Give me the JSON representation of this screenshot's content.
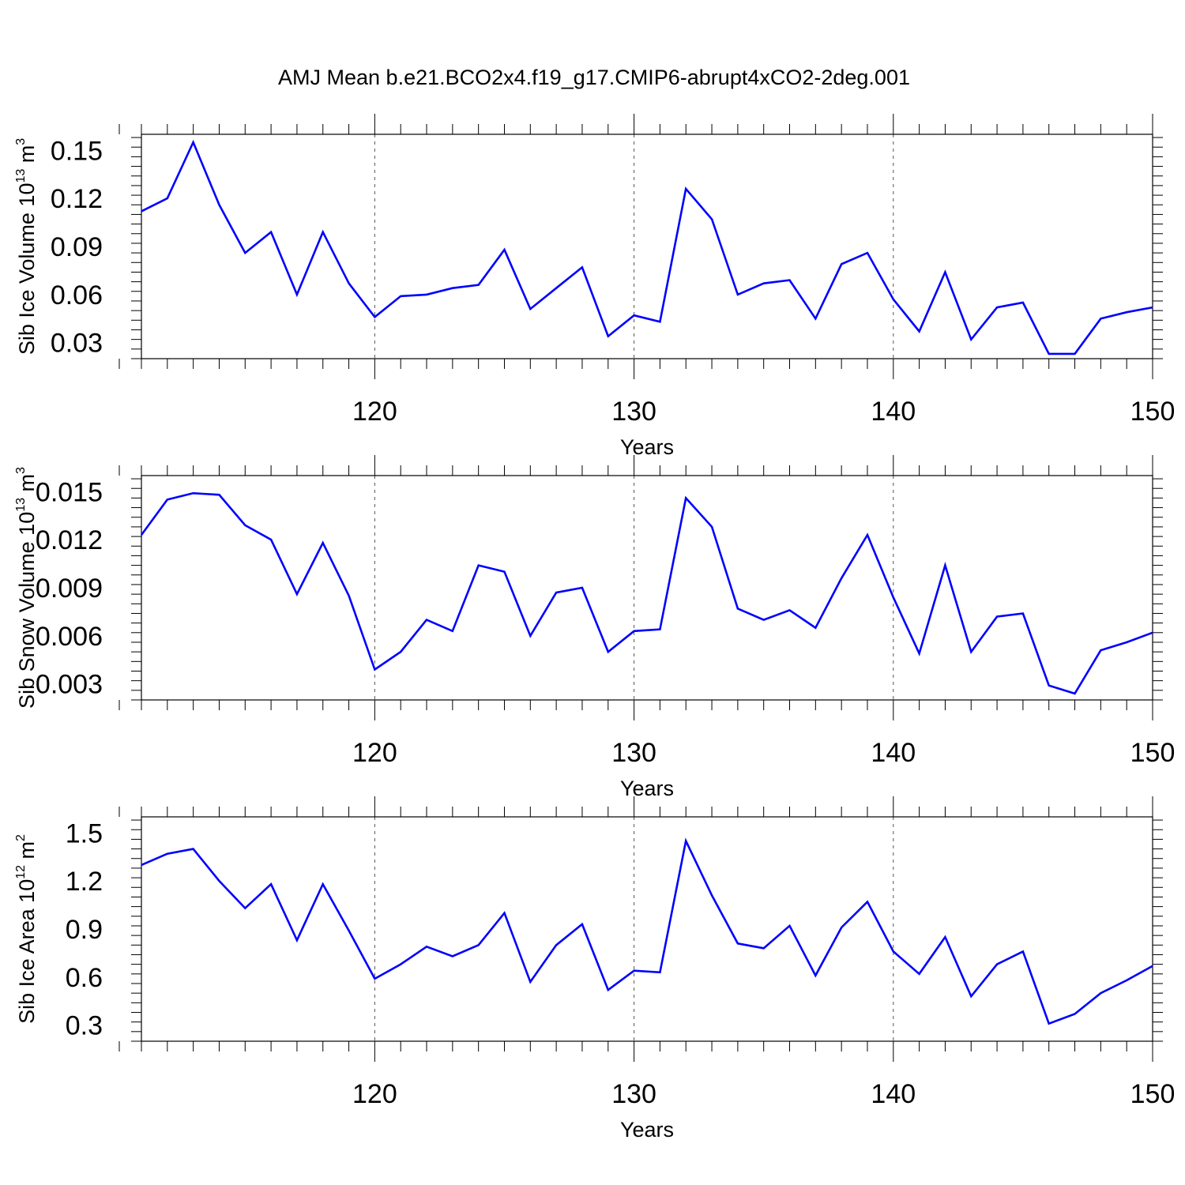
{
  "title": "AMJ Mean b.e21.BCO2x4.f19_g17.CMIP6-abrupt4xCO2-2deg.001",
  "line_color": "#0000ff",
  "chart_data": [
    {
      "type": "line",
      "xlabel": "Years",
      "ylabel": {
        "main": "Sib Ice Volume 10",
        "exp": "13",
        "unit": " m",
        "unit_exp": "3"
      },
      "xlim": [
        111,
        150
      ],
      "ylim": [
        0.02,
        0.16
      ],
      "xticks": [
        120,
        130,
        140,
        150
      ],
      "xtick_labels": [
        "120",
        "130",
        "140",
        "150"
      ],
      "yticks": [
        0.03,
        0.06,
        0.09,
        0.12,
        0.15
      ],
      "ytick_labels": [
        "0.03",
        "0.06",
        "0.09",
        "0.12",
        "0.15"
      ],
      "grid_x": [
        120,
        130,
        140
      ],
      "x": [
        111,
        112,
        113,
        114,
        115,
        116,
        117,
        118,
        119,
        120,
        121,
        122,
        123,
        124,
        125,
        126,
        127,
        128,
        129,
        130,
        131,
        132,
        133,
        134,
        135,
        136,
        137,
        138,
        139,
        140,
        141,
        142,
        143,
        144,
        145,
        146,
        147,
        148,
        149,
        150
      ],
      "y": [
        0.112,
        0.12,
        0.155,
        0.116,
        0.086,
        0.099,
        0.06,
        0.099,
        0.067,
        0.046,
        0.059,
        0.06,
        0.064,
        0.066,
        0.088,
        0.051,
        0.064,
        0.077,
        0.034,
        0.047,
        0.043,
        0.126,
        0.107,
        0.06,
        0.067,
        0.069,
        0.045,
        0.079,
        0.086,
        0.057,
        0.037,
        0.074,
        0.032,
        0.052,
        0.055,
        0.023,
        0.023,
        0.045,
        0.049,
        0.052
      ]
    },
    {
      "type": "line",
      "xlabel": "Years",
      "ylabel": {
        "main": "Sib Snow Volume 10",
        "exp": "13",
        "unit": " m",
        "unit_exp": "3"
      },
      "xlim": [
        111,
        150
      ],
      "ylim": [
        0.002,
        0.016
      ],
      "xticks": [
        120,
        130,
        140,
        150
      ],
      "xtick_labels": [
        "120",
        "130",
        "140",
        "150"
      ],
      "yticks": [
        0.003,
        0.006,
        0.009,
        0.012,
        0.015
      ],
      "ytick_labels": [
        "0.003",
        "0.006",
        "0.009",
        "0.012",
        "0.015"
      ],
      "grid_x": [
        120,
        130,
        140
      ],
      "x": [
        111,
        112,
        113,
        114,
        115,
        116,
        117,
        118,
        119,
        120,
        121,
        122,
        123,
        124,
        125,
        126,
        127,
        128,
        129,
        130,
        131,
        132,
        133,
        134,
        135,
        136,
        137,
        138,
        139,
        140,
        141,
        142,
        143,
        144,
        145,
        146,
        147,
        148,
        149,
        150
      ],
      "y": [
        0.0123,
        0.0145,
        0.0149,
        0.0148,
        0.0129,
        0.012,
        0.0086,
        0.0118,
        0.0085,
        0.0039,
        0.005,
        0.007,
        0.0063,
        0.0104,
        0.01,
        0.006,
        0.0087,
        0.009,
        0.005,
        0.0063,
        0.0064,
        0.0146,
        0.0128,
        0.0077,
        0.007,
        0.0076,
        0.0065,
        0.0096,
        0.0123,
        0.0084,
        0.0049,
        0.0104,
        0.005,
        0.0072,
        0.0074,
        0.0029,
        0.0024,
        0.0051,
        0.0056,
        0.0062
      ]
    },
    {
      "type": "line",
      "xlabel": "Years",
      "ylabel": {
        "main": "Sib Ice Area 10",
        "exp": "12",
        "unit": " m",
        "unit_exp": "2"
      },
      "xlim": [
        111,
        150
      ],
      "ylim": [
        0.2,
        1.6
      ],
      "xticks": [
        120,
        130,
        140,
        150
      ],
      "xtick_labels": [
        "120",
        "130",
        "140",
        "150"
      ],
      "yticks": [
        0.3,
        0.6,
        0.9,
        1.2,
        1.5
      ],
      "ytick_labels": [
        "0.3",
        "0.6",
        "0.9",
        "1.2",
        "1.5"
      ],
      "grid_x": [
        120,
        130,
        140
      ],
      "x": [
        111,
        112,
        113,
        114,
        115,
        116,
        117,
        118,
        119,
        120,
        121,
        122,
        123,
        124,
        125,
        126,
        127,
        128,
        129,
        130,
        131,
        132,
        133,
        134,
        135,
        136,
        137,
        138,
        139,
        140,
        141,
        142,
        143,
        144,
        145,
        146,
        147,
        148,
        149,
        150
      ],
      "y": [
        1.3,
        1.37,
        1.4,
        1.2,
        1.03,
        1.18,
        0.83,
        1.18,
        0.89,
        0.59,
        0.68,
        0.79,
        0.73,
        0.8,
        1.0,
        0.57,
        0.8,
        0.93,
        0.52,
        0.64,
        0.63,
        1.45,
        1.11,
        0.81,
        0.78,
        0.92,
        0.61,
        0.91,
        1.07,
        0.76,
        0.62,
        0.85,
        0.48,
        0.68,
        0.76,
        0.31,
        0.37,
        0.5,
        0.58,
        0.67
      ]
    }
  ]
}
